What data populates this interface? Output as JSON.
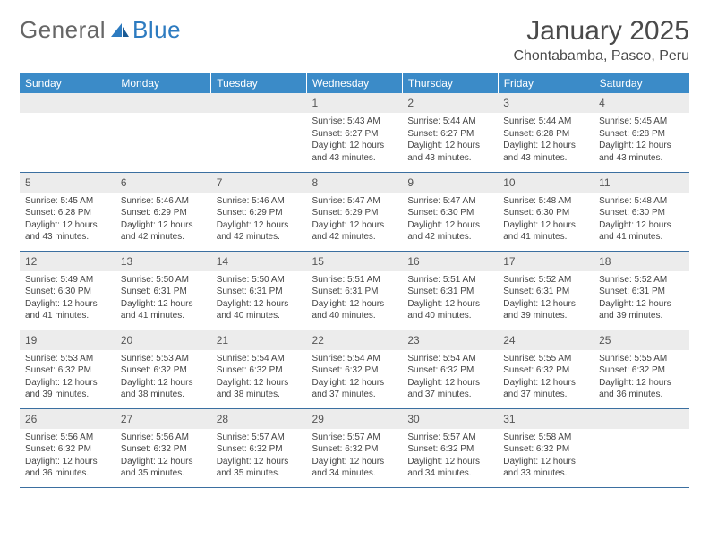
{
  "brand": {
    "part1": "General",
    "part2": "Blue"
  },
  "title": "January 2025",
  "location": "Chontabamba, Pasco, Peru",
  "colors": {
    "header_bg": "#3b8bc8",
    "header_text": "#ffffff",
    "daynum_bg": "#ececec",
    "rule": "#3b6fa0",
    "body_text": "#444444",
    "title_text": "#4a4a4a",
    "logo_gray": "#666666",
    "logo_blue": "#2d7bc0"
  },
  "weekdays": [
    "Sunday",
    "Monday",
    "Tuesday",
    "Wednesday",
    "Thursday",
    "Friday",
    "Saturday"
  ],
  "weeks": [
    [
      null,
      null,
      null,
      {
        "n": "1",
        "sr": "5:43 AM",
        "ss": "6:27 PM",
        "dl": "12 hours and 43 minutes."
      },
      {
        "n": "2",
        "sr": "5:44 AM",
        "ss": "6:27 PM",
        "dl": "12 hours and 43 minutes."
      },
      {
        "n": "3",
        "sr": "5:44 AM",
        "ss": "6:28 PM",
        "dl": "12 hours and 43 minutes."
      },
      {
        "n": "4",
        "sr": "5:45 AM",
        "ss": "6:28 PM",
        "dl": "12 hours and 43 minutes."
      }
    ],
    [
      {
        "n": "5",
        "sr": "5:45 AM",
        "ss": "6:28 PM",
        "dl": "12 hours and 43 minutes."
      },
      {
        "n": "6",
        "sr": "5:46 AM",
        "ss": "6:29 PM",
        "dl": "12 hours and 42 minutes."
      },
      {
        "n": "7",
        "sr": "5:46 AM",
        "ss": "6:29 PM",
        "dl": "12 hours and 42 minutes."
      },
      {
        "n": "8",
        "sr": "5:47 AM",
        "ss": "6:29 PM",
        "dl": "12 hours and 42 minutes."
      },
      {
        "n": "9",
        "sr": "5:47 AM",
        "ss": "6:30 PM",
        "dl": "12 hours and 42 minutes."
      },
      {
        "n": "10",
        "sr": "5:48 AM",
        "ss": "6:30 PM",
        "dl": "12 hours and 41 minutes."
      },
      {
        "n": "11",
        "sr": "5:48 AM",
        "ss": "6:30 PM",
        "dl": "12 hours and 41 minutes."
      }
    ],
    [
      {
        "n": "12",
        "sr": "5:49 AM",
        "ss": "6:30 PM",
        "dl": "12 hours and 41 minutes."
      },
      {
        "n": "13",
        "sr": "5:50 AM",
        "ss": "6:31 PM",
        "dl": "12 hours and 41 minutes."
      },
      {
        "n": "14",
        "sr": "5:50 AM",
        "ss": "6:31 PM",
        "dl": "12 hours and 40 minutes."
      },
      {
        "n": "15",
        "sr": "5:51 AM",
        "ss": "6:31 PM",
        "dl": "12 hours and 40 minutes."
      },
      {
        "n": "16",
        "sr": "5:51 AM",
        "ss": "6:31 PM",
        "dl": "12 hours and 40 minutes."
      },
      {
        "n": "17",
        "sr": "5:52 AM",
        "ss": "6:31 PM",
        "dl": "12 hours and 39 minutes."
      },
      {
        "n": "18",
        "sr": "5:52 AM",
        "ss": "6:31 PM",
        "dl": "12 hours and 39 minutes."
      }
    ],
    [
      {
        "n": "19",
        "sr": "5:53 AM",
        "ss": "6:32 PM",
        "dl": "12 hours and 39 minutes."
      },
      {
        "n": "20",
        "sr": "5:53 AM",
        "ss": "6:32 PM",
        "dl": "12 hours and 38 minutes."
      },
      {
        "n": "21",
        "sr": "5:54 AM",
        "ss": "6:32 PM",
        "dl": "12 hours and 38 minutes."
      },
      {
        "n": "22",
        "sr": "5:54 AM",
        "ss": "6:32 PM",
        "dl": "12 hours and 37 minutes."
      },
      {
        "n": "23",
        "sr": "5:54 AM",
        "ss": "6:32 PM",
        "dl": "12 hours and 37 minutes."
      },
      {
        "n": "24",
        "sr": "5:55 AM",
        "ss": "6:32 PM",
        "dl": "12 hours and 37 minutes."
      },
      {
        "n": "25",
        "sr": "5:55 AM",
        "ss": "6:32 PM",
        "dl": "12 hours and 36 minutes."
      }
    ],
    [
      {
        "n": "26",
        "sr": "5:56 AM",
        "ss": "6:32 PM",
        "dl": "12 hours and 36 minutes."
      },
      {
        "n": "27",
        "sr": "5:56 AM",
        "ss": "6:32 PM",
        "dl": "12 hours and 35 minutes."
      },
      {
        "n": "28",
        "sr": "5:57 AM",
        "ss": "6:32 PM",
        "dl": "12 hours and 35 minutes."
      },
      {
        "n": "29",
        "sr": "5:57 AM",
        "ss": "6:32 PM",
        "dl": "12 hours and 34 minutes."
      },
      {
        "n": "30",
        "sr": "5:57 AM",
        "ss": "6:32 PM",
        "dl": "12 hours and 34 minutes."
      },
      {
        "n": "31",
        "sr": "5:58 AM",
        "ss": "6:32 PM",
        "dl": "12 hours and 33 minutes."
      },
      null
    ]
  ],
  "labels": {
    "sunrise": "Sunrise:",
    "sunset": "Sunset:",
    "daylight": "Daylight:"
  }
}
